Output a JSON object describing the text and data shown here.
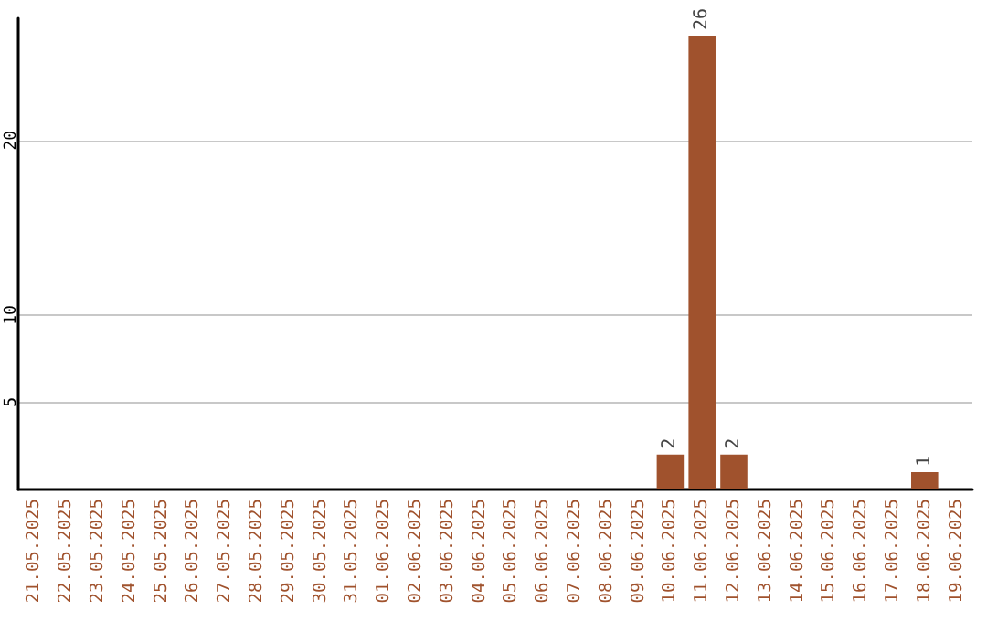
{
  "chart_data": {
    "type": "bar",
    "categories": [
      "21.05.2025",
      "22.05.2025",
      "23.05.2025",
      "24.05.2025",
      "25.05.2025",
      "26.05.2025",
      "27.05.2025",
      "28.05.2025",
      "29.05.2025",
      "30.05.2025",
      "31.05.2025",
      "01.06.2025",
      "02.06.2025",
      "03.06.2025",
      "04.06.2025",
      "05.06.2025",
      "06.06.2025",
      "07.06.2025",
      "08.06.2025",
      "09.06.2025",
      "10.06.2025",
      "11.06.2025",
      "12.06.2025",
      "13.06.2025",
      "14.06.2025",
      "15.06.2025",
      "16.06.2025",
      "17.06.2025",
      "18.06.2025",
      "19.06.2025"
    ],
    "values": [
      0,
      0,
      0,
      0,
      0,
      0,
      0,
      0,
      0,
      0,
      0,
      0,
      0,
      0,
      0,
      0,
      0,
      0,
      0,
      0,
      2,
      26,
      2,
      0,
      0,
      0,
      0,
      0,
      1,
      0
    ],
    "value_labels": [
      null,
      null,
      null,
      null,
      null,
      null,
      null,
      null,
      null,
      null,
      null,
      null,
      null,
      null,
      null,
      null,
      null,
      null,
      null,
      null,
      "2",
      "26",
      "2",
      null,
      null,
      null,
      null,
      null,
      "1",
      null
    ],
    "color": "#a0522d",
    "ylim": [
      0,
      27
    ],
    "yticks": [
      5,
      10,
      20
    ],
    "grid": "y"
  }
}
